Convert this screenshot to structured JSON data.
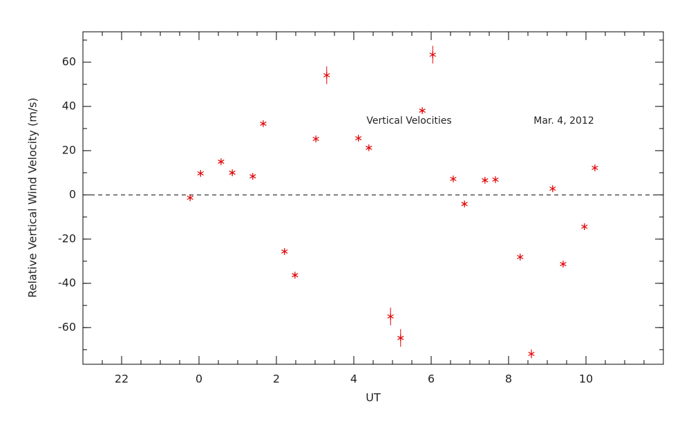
{
  "chart_data": {
    "type": "scatter",
    "annotations": [
      "Vertical Velocities",
      "Mar. 4, 2012"
    ],
    "xlabel": "UT",
    "ylabel": "Relative Vertical Wind Velocity (m/s)",
    "series": [
      {
        "color": "#e00000",
        "x": [
          -0.23,
          0.04,
          0.57,
          0.86,
          1.39,
          1.66,
          2.21,
          2.48,
          3.02,
          3.3,
          4.12,
          4.39,
          4.95,
          5.21,
          5.77,
          6.04,
          6.57,
          6.86,
          7.39,
          7.66,
          8.3,
          8.59,
          9.14,
          9.41,
          9.96,
          10.23
        ],
        "values": [
          -1.3,
          9.7,
          15,
          10,
          8.4,
          32.2,
          -25.6,
          -36.3,
          25.3,
          54.1,
          25.6,
          21.3,
          -55,
          -64.7,
          38.1,
          63.4,
          7.2,
          -4.1,
          6.6,
          6.9,
          -28.1,
          -71.9,
          2.8,
          -31.3,
          -14.4,
          12.2
        ],
        "errors": [
          1,
          1,
          1,
          1,
          1,
          1,
          1,
          1,
          1,
          4,
          1,
          1,
          4,
          4,
          1,
          4,
          1,
          1,
          1,
          1,
          1,
          2,
          1,
          1,
          1,
          1
        ]
      }
    ],
    "xlim": [
      -3,
      12
    ],
    "xticks": [
      {
        "value": -2,
        "label": "22"
      },
      0,
      2,
      4,
      6,
      8,
      10
    ],
    "x_minor_step": 0.5,
    "ylim": [
      -76.6,
      73.75
    ],
    "yticks": [
      -60,
      -40,
      -20,
      0,
      20,
      40,
      60
    ],
    "y_minor_step": 10,
    "hline": 0
  }
}
